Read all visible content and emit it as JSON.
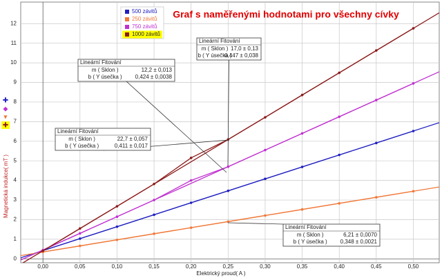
{
  "chart_data": {
    "type": "line",
    "title": "Graf s naměřenými hodnotami pro všechny cívky",
    "x_label": "Elektrický proud( A )",
    "y_label": "Magnetická indukce( mT )",
    "x": [
      0,
      0.05,
      0.1,
      0.15,
      0.2,
      0.25,
      0.3,
      0.35,
      0.4,
      0.45,
      0.5
    ],
    "series": [
      {
        "name": "500 závitů",
        "color": "#2020c0",
        "values": [
          0.42,
          1.03,
          1.64,
          2.25,
          2.86,
          3.47,
          4.08,
          4.69,
          5.3,
          5.91,
          6.52
        ]
      },
      {
        "name": "250 závitů",
        "color": "#f07838",
        "values": [
          0.35,
          0.66,
          0.97,
          1.28,
          1.59,
          1.9,
          2.21,
          2.52,
          2.83,
          3.14,
          3.45
        ]
      },
      {
        "name": "750 závitů",
        "color": "#c030d0",
        "values": [
          0.45,
          1.3,
          2.15,
          3.0,
          4.0,
          4.7,
          5.55,
          6.4,
          7.25,
          8.1,
          8.95
        ]
      },
      {
        "name": "1000 závitů",
        "color": "#8b1a1a",
        "values": [
          0.41,
          1.55,
          2.68,
          3.82,
          5.15,
          6.09,
          7.22,
          8.36,
          9.49,
          10.63,
          11.76
        ]
      }
    ],
    "xlim": [
      -0.03,
      0.535
    ],
    "ylim": [
      -0.2,
      13.1
    ],
    "xticks": [
      {
        "value": 0,
        "label": "0,00"
      },
      {
        "value": 0.05,
        "label": "0,05"
      },
      {
        "value": 0.1,
        "label": "0,10"
      },
      {
        "value": 0.15,
        "label": "0,15"
      },
      {
        "value": 0.2,
        "label": "0,20"
      },
      {
        "value": 0.25,
        "label": "0,25"
      },
      {
        "value": 0.3,
        "label": "0,30"
      },
      {
        "value": 0.35,
        "label": "0,35"
      },
      {
        "value": 0.4,
        "label": "0,40"
      },
      {
        "value": 0.45,
        "label": "0,45"
      },
      {
        "value": 0.5,
        "label": "0,50"
      }
    ],
    "yticks": [
      0,
      1,
      2,
      3,
      4,
      5,
      6,
      7,
      8,
      9,
      10,
      11,
      12
    ],
    "grid": true,
    "annotations": [
      {
        "title": "Lineární Fitování",
        "rows": [
          [
            "m ( Sklon )",
            "12,2 ± 0,013"
          ],
          [
            "b ( Y úsečka )",
            "0,424 ± 0,0038"
          ]
        ]
      },
      {
        "title": "Lineární Fitování",
        "rows": [
          [
            "m ( Sklon )",
            "6,21 ± 0,0070"
          ],
          [
            "b ( Y úsečka )",
            "0,348 ± 0,0021"
          ]
        ]
      },
      {
        "title": "Lineární Fitování",
        "rows": [
          [
            "m ( Sklon )",
            "17,0 ± 0,13"
          ],
          [
            "b ( Y úsečka )",
            "0,447 ± 0,038"
          ]
        ]
      },
      {
        "title": "Lineární Fitování",
        "rows": [
          [
            "m ( Sklon )",
            "22,7 ± 0,057"
          ],
          [
            "b ( Y úsečka )",
            "0,411 ± 0,017"
          ]
        ]
      }
    ]
  }
}
